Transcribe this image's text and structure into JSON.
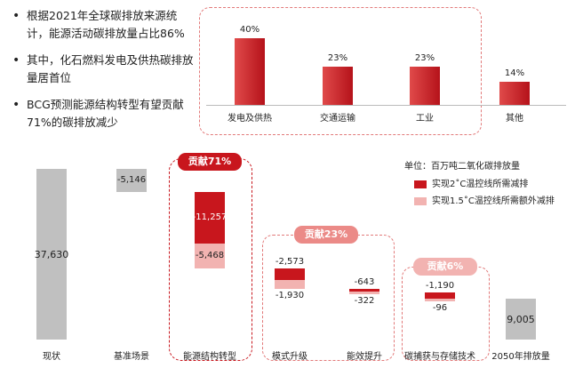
{
  "bullets": [
    "根据2021年全球碳排放来源统计，能源活动碳排放量占比86%",
    "其中，化石燃料发电及供热碳排放量居首位",
    "BCG预测能源结构转型有望贡献71%的碳排放减少"
  ],
  "colors": {
    "dark_red": "#c8161d",
    "light_red": "#f2b3b1",
    "gray": "#c0c0c0",
    "dash": "#e27a7a",
    "badge_dark": "#c8161d",
    "badge_light": "#eb8a87"
  },
  "chart_data": [
    {
      "type": "bar",
      "categories": [
        "发电及供热",
        "交通运输",
        "工业",
        "其他"
      ],
      "values": [
        40,
        23,
        23,
        14
      ],
      "value_labels": [
        "40%",
        "23%",
        "23%",
        "14%"
      ],
      "ylim": [
        0,
        45
      ]
    },
    {
      "type": "waterfall",
      "unit_label": "单位：百万吨二氧化碳排放量",
      "legend": [
        {
          "label": "实现2˚C温控线所需减排",
          "color": "#c8161d"
        },
        {
          "label": "实现1.5˚C温控线所需额外减排",
          "color": "#f2b3b1"
        }
      ],
      "ylim": [
        0,
        40000
      ],
      "categories": [
        "现状",
        "基准场景",
        "能源结构转型",
        "模式升级",
        "能效提升",
        "碳捕获与存储技术",
        "2050年排放量"
      ],
      "totals": [
        {
          "category": "现状",
          "value": 37630,
          "label": "37,630"
        },
        {
          "category": "2050年排放量",
          "value": 9005,
          "label": "9,005"
        }
      ],
      "steps": [
        {
          "category": "基准场景",
          "dark": -5146,
          "dark_label": "-5,146",
          "light": 0,
          "light_label": ""
        },
        {
          "category": "能源结构转型",
          "dark": -11257,
          "dark_label": "-11,257",
          "light": -5468,
          "light_label": "-5,468"
        },
        {
          "category": "模式升级",
          "dark": -2573,
          "dark_label": "-2,573",
          "light": -1930,
          "light_label": "-1,930"
        },
        {
          "category": "能效提升",
          "dark": -643,
          "dark_label": "-643",
          "light": -322,
          "light_label": "-322"
        },
        {
          "category": "碳捕获与存储技术",
          "dark": -1190,
          "dark_label": "-1,190",
          "light": -96,
          "light_label": "-96"
        }
      ],
      "groups": [
        {
          "label": "贡献71%"
        },
        {
          "label": "贡献23%"
        },
        {
          "label": "贡献6%"
        }
      ]
    }
  ]
}
